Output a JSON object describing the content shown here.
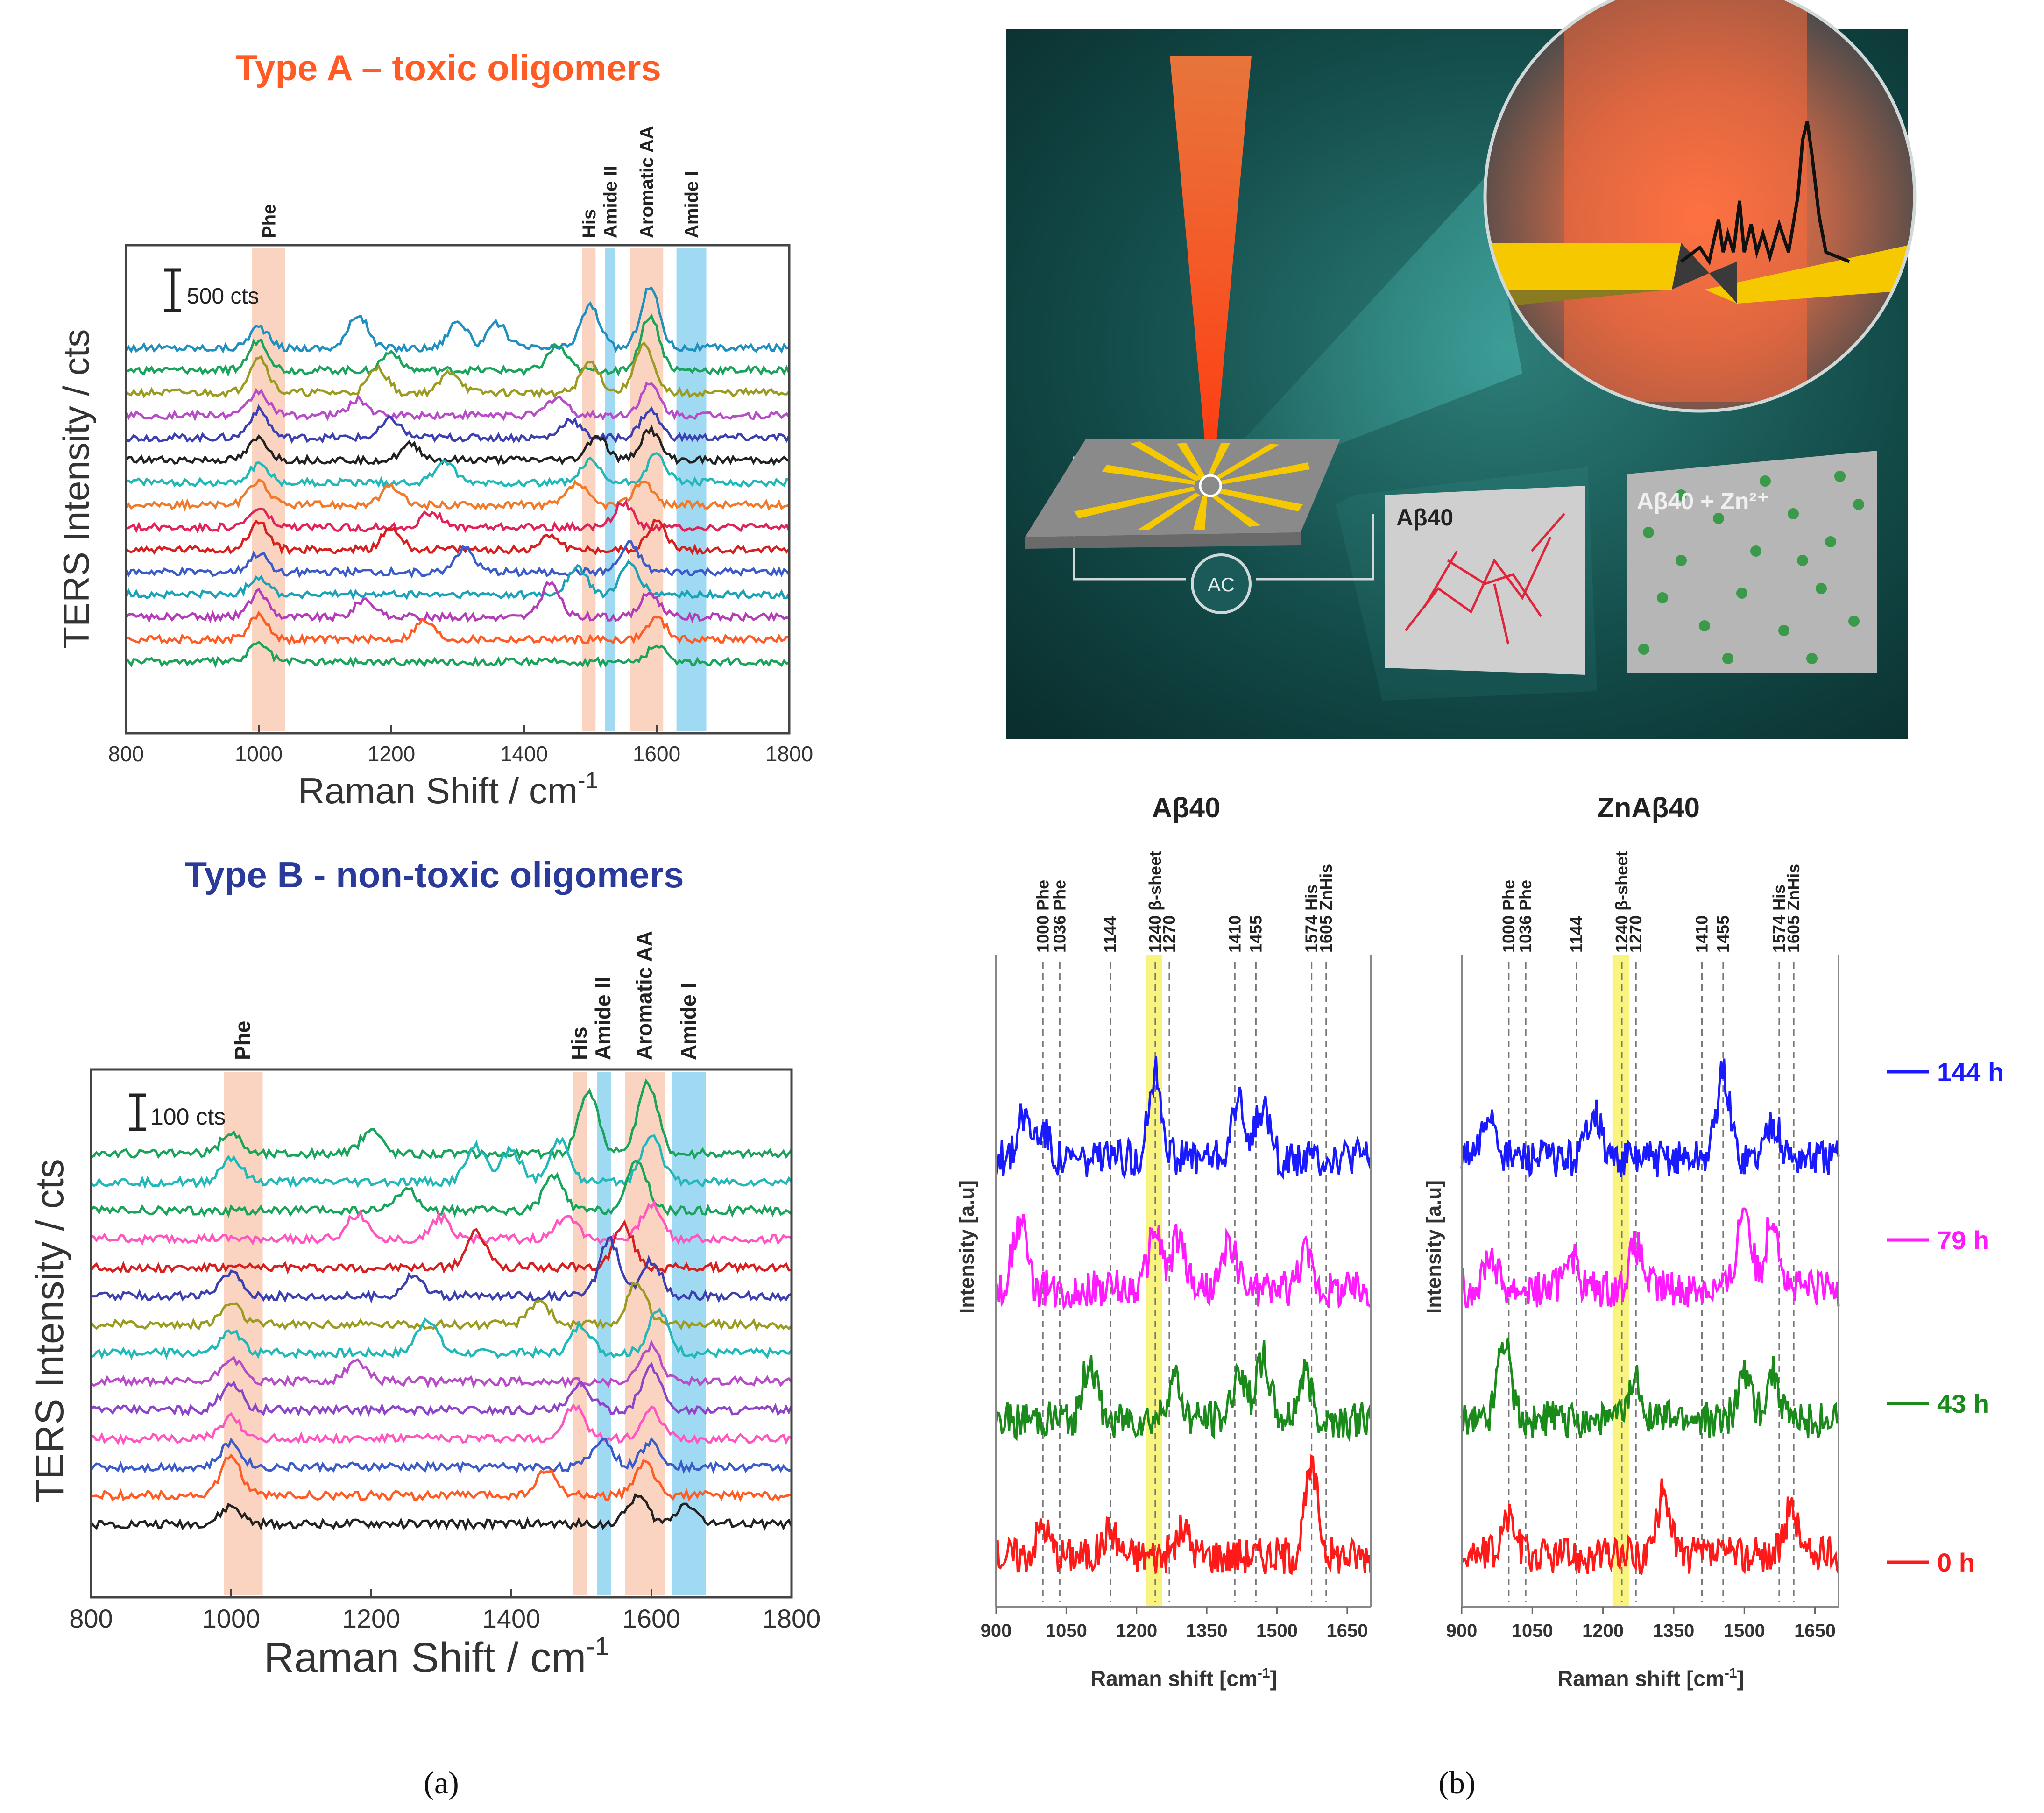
{
  "panel_a_label": "(a)",
  "panel_b_label": "(b)",
  "illustration": {
    "label_abeta": "Aβ40",
    "label_abeta_zn": "Aβ40 + Zn²⁺",
    "label_ac": "AC",
    "colors": {
      "background": "#0f4c4a",
      "laser": "#ff6a2a",
      "gold": "#f5c800"
    }
  },
  "chart_data": [
    {
      "type": "line",
      "title": "Type A – toxic oligomers",
      "title_color": "#ff5b24",
      "xlabel": "Raman Shift / cm",
      "xlabel_sup": "-1",
      "ylabel": "TERS Intensity / cts",
      "xlim": [
        800,
        1800
      ],
      "xticks": [
        "800",
        "1000",
        "1200",
        "1400",
        "1600",
        "1800"
      ],
      "scalebar_label": "500 cts",
      "bands": [
        {
          "label": "Phe",
          "from": 990,
          "to": 1040,
          "color": "orange"
        },
        {
          "label": "His",
          "from": 1488,
          "to": 1508,
          "color": "orange"
        },
        {
          "label": "Amide II",
          "from": 1522,
          "to": 1538,
          "color": "blue"
        },
        {
          "label": "Aromatic AA",
          "from": 1560,
          "to": 1610,
          "color": "orange"
        },
        {
          "label": "Amide I",
          "from": 1630,
          "to": 1675,
          "color": "blue"
        }
      ],
      "series": [
        {
          "color": "#1f8fc0",
          "peaks": [
            [
              1000,
              0.35
            ],
            [
              1150,
              0.55
            ],
            [
              1300,
              0.45
            ],
            [
              1360,
              0.4
            ],
            [
              1500,
              0.7
            ],
            [
              1590,
              1.0
            ]
          ]
        },
        {
          "color": "#1aa35a",
          "peaks": [
            [
              1000,
              0.5
            ],
            [
              1200,
              0.3
            ],
            [
              1450,
              0.4
            ],
            [
              1590,
              0.9
            ]
          ]
        },
        {
          "color": "#9b9b22",
          "peaks": [
            [
              1000,
              0.6
            ],
            [
              1180,
              0.4
            ],
            [
              1290,
              0.35
            ],
            [
              1500,
              0.5
            ],
            [
              1580,
              0.8
            ]
          ]
        },
        {
          "color": "#b84cc8",
          "peaks": [
            [
              1000,
              0.4
            ],
            [
              1150,
              0.25
            ],
            [
              1450,
              0.3
            ],
            [
              1590,
              0.5
            ]
          ]
        },
        {
          "color": "#3b3fb0",
          "peaks": [
            [
              1000,
              0.45
            ],
            [
              1200,
              0.3
            ],
            [
              1470,
              0.3
            ],
            [
              1590,
              0.45
            ]
          ]
        },
        {
          "color": "#222222",
          "peaks": [
            [
              1000,
              0.35
            ],
            [
              1230,
              0.25
            ],
            [
              1510,
              0.4
            ],
            [
              1590,
              0.5
            ]
          ]
        },
        {
          "color": "#20b8b8",
          "peaks": [
            [
              1000,
              0.3
            ],
            [
              1280,
              0.35
            ],
            [
              1500,
              0.35
            ],
            [
              1600,
              0.45
            ]
          ]
        },
        {
          "color": "#f07a2a",
          "peaks": [
            [
              1000,
              0.4
            ],
            [
              1200,
              0.3
            ],
            [
              1480,
              0.35
            ],
            [
              1580,
              0.4
            ]
          ]
        },
        {
          "color": "#e0245a",
          "peaks": [
            [
              1000,
              0.3
            ],
            [
              1260,
              0.25
            ],
            [
              1550,
              0.4
            ]
          ]
        },
        {
          "color": "#d62020",
          "peaks": [
            [
              1000,
              0.45
            ],
            [
              1200,
              0.35
            ],
            [
              1440,
              0.25
            ],
            [
              1600,
              0.45
            ]
          ]
        },
        {
          "color": "#3b5bc8",
          "peaks": [
            [
              1000,
              0.3
            ],
            [
              1310,
              0.4
            ],
            [
              1560,
              0.45
            ]
          ]
        },
        {
          "color": "#1aa3b8",
          "peaks": [
            [
              1000,
              0.3
            ],
            [
              1480,
              0.45
            ],
            [
              1560,
              0.5
            ]
          ]
        },
        {
          "color": "#b43cb8",
          "peaks": [
            [
              1000,
              0.4
            ],
            [
              1160,
              0.3
            ],
            [
              1440,
              0.55
            ],
            [
              1590,
              0.4
            ]
          ]
        },
        {
          "color": "#ff5b24",
          "peaks": [
            [
              1000,
              0.4
            ],
            [
              1250,
              0.3
            ],
            [
              1600,
              0.35
            ]
          ]
        },
        {
          "color": "#1aa35a",
          "peaks": [
            [
              1000,
              0.3
            ],
            [
              1600,
              0.25
            ]
          ]
        }
      ]
    },
    {
      "type": "line",
      "title": "Type B - non-toxic oligomers",
      "title_color": "#2a3a9a",
      "xlabel": "Raman Shift / cm",
      "xlabel_sup": "-1",
      "ylabel": "TERS Intensity / cts",
      "xlim": [
        800,
        1800
      ],
      "xticks": [
        "800",
        "1000",
        "1200",
        "1400",
        "1600",
        "1800"
      ],
      "scalebar_label": "100 cts",
      "bands": [
        {
          "label": "Phe",
          "from": 990,
          "to": 1045,
          "color": "orange"
        },
        {
          "label": "His",
          "from": 1488,
          "to": 1508,
          "color": "orange"
        },
        {
          "label": "Amide II",
          "from": 1522,
          "to": 1542,
          "color": "blue"
        },
        {
          "label": "Aromatic AA",
          "from": 1562,
          "to": 1620,
          "color": "orange"
        },
        {
          "label": "Amide I",
          "from": 1630,
          "to": 1678,
          "color": "blue"
        }
      ],
      "series": [
        {
          "color": "#1aa35a",
          "peaks": [
            [
              1000,
              0.3
            ],
            [
              1200,
              0.35
            ],
            [
              1510,
              0.9
            ],
            [
              1595,
              1.0
            ]
          ]
        },
        {
          "color": "#20b8b8",
          "peaks": [
            [
              1000,
              0.35
            ],
            [
              1350,
              0.5
            ],
            [
              1400,
              0.45
            ],
            [
              1470,
              0.6
            ],
            [
              1600,
              0.7
            ]
          ]
        },
        {
          "color": "#1aa35a",
          "peaks": [
            [
              1250,
              0.3
            ],
            [
              1460,
              0.5
            ],
            [
              1580,
              0.7
            ]
          ]
        },
        {
          "color": "#ff55c0",
          "peaks": [
            [
              1180,
              0.35
            ],
            [
              1300,
              0.3
            ],
            [
              1480,
              0.35
            ],
            [
              1600,
              0.5
            ]
          ]
        },
        {
          "color": "#d62020",
          "peaks": [
            [
              1350,
              0.5
            ],
            [
              1560,
              0.6
            ]
          ]
        },
        {
          "color": "#3b3fb0",
          "peaks": [
            [
              1000,
              0.35
            ],
            [
              1260,
              0.3
            ],
            [
              1540,
              0.8
            ],
            [
              1600,
              0.5
            ]
          ]
        },
        {
          "color": "#9b9b22",
          "peaks": [
            [
              1000,
              0.3
            ],
            [
              1440,
              0.35
            ],
            [
              1580,
              0.6
            ]
          ]
        },
        {
          "color": "#20b8b8",
          "peaks": [
            [
              1000,
              0.3
            ],
            [
              1280,
              0.5
            ],
            [
              1500,
              0.4
            ],
            [
              1610,
              0.6
            ]
          ]
        },
        {
          "color": "#b84cc8",
          "peaks": [
            [
              1000,
              0.35
            ],
            [
              1180,
              0.3
            ],
            [
              1600,
              0.5
            ]
          ]
        },
        {
          "color": "#8e44c8",
          "peaks": [
            [
              1000,
              0.4
            ],
            [
              1500,
              0.35
            ],
            [
              1600,
              0.6
            ]
          ]
        },
        {
          "color": "#ff55c0",
          "peaks": [
            [
              1000,
              0.3
            ],
            [
              1490,
              0.45
            ],
            [
              1600,
              0.4
            ]
          ]
        },
        {
          "color": "#3b5bc8",
          "peaks": [
            [
              1000,
              0.35
            ],
            [
              1530,
              0.4
            ],
            [
              1600,
              0.35
            ]
          ]
        },
        {
          "color": "#ff5b24",
          "peaks": [
            [
              1000,
              0.55
            ],
            [
              1450,
              0.35
            ],
            [
              1590,
              0.45
            ]
          ]
        },
        {
          "color": "#222222",
          "peaks": [
            [
              1000,
              0.25
            ],
            [
              1580,
              0.4
            ],
            [
              1650,
              0.3
            ]
          ]
        }
      ]
    },
    {
      "type": "line",
      "title": "Aβ40",
      "xlabel": "Raman shift [cm",
      "xlabel_sup": "-1",
      "xlabel_tail": "]",
      "ylabel": "Intensity [a.u]",
      "xlim": [
        900,
        1700
      ],
      "xticks": [
        "900",
        "1050",
        "1200",
        "1350",
        "1500",
        "1650"
      ],
      "tick_values": [
        900,
        1050,
        1200,
        1350,
        1500,
        1650
      ],
      "highlight": {
        "from": 1220,
        "to": 1255
      },
      "markers": [
        {
          "x": 1000,
          "label": "1000 Phe"
        },
        {
          "x": 1036,
          "label": "1036 Phe"
        },
        {
          "x": 1144,
          "label": "1144"
        },
        {
          "x": 1240,
          "label": "1240 β-sheet"
        },
        {
          "x": 1270,
          "label": "1270"
        },
        {
          "x": 1410,
          "label": "1410"
        },
        {
          "x": 1455,
          "label": "1455"
        },
        {
          "x": 1574,
          "label": "1574 His"
        },
        {
          "x": 1605,
          "label": "1605 ZnHis"
        }
      ],
      "series": [
        {
          "name": "144 h",
          "color": "#1a1aff",
          "peaks": [
            [
              960,
              0.5
            ],
            [
              1000,
              0.35
            ],
            [
              1240,
              1.0
            ],
            [
              1420,
              0.7
            ],
            [
              1470,
              0.6
            ]
          ]
        },
        {
          "name": "79 h",
          "color": "#ff1aff",
          "peaks": [
            [
              950,
              0.8
            ],
            [
              1240,
              0.7
            ],
            [
              1290,
              0.6
            ],
            [
              1400,
              0.55
            ],
            [
              1560,
              0.45
            ]
          ]
        },
        {
          "name": "43 h",
          "color": "#1a8a1a",
          "peaks": [
            [
              1100,
              0.7
            ],
            [
              1280,
              0.5
            ],
            [
              1420,
              0.6
            ],
            [
              1470,
              0.75
            ],
            [
              1560,
              0.55
            ]
          ]
        },
        {
          "name": "0 h",
          "color": "#ff1a1a",
          "peaks": [
            [
              1000,
              0.35
            ],
            [
              1144,
              0.3
            ],
            [
              1300,
              0.3
            ],
            [
              1574,
              1.0
            ]
          ]
        }
      ]
    },
    {
      "type": "line",
      "title": "ZnAβ40",
      "xlabel": "Raman shift [cm",
      "xlabel_sup": "-1",
      "xlabel_tail": "]",
      "ylabel": "Intensity [a.u]",
      "xlim": [
        900,
        1700
      ],
      "xticks": [
        "900",
        "1050",
        "1200",
        "1350",
        "1500",
        "1650"
      ],
      "tick_values": [
        900,
        1050,
        1200,
        1350,
        1500,
        1650
      ],
      "highlight": {
        "from": 1220,
        "to": 1255
      },
      "markers": [
        {
          "x": 1000,
          "label": "1000 Phe"
        },
        {
          "x": 1036,
          "label": "1036 Phe"
        },
        {
          "x": 1144,
          "label": "1144"
        },
        {
          "x": 1240,
          "label": "1240 β-sheet"
        },
        {
          "x": 1270,
          "label": "1270"
        },
        {
          "x": 1410,
          "label": "1410"
        },
        {
          "x": 1455,
          "label": "1455"
        },
        {
          "x": 1574,
          "label": "1574 His"
        },
        {
          "x": 1605,
          "label": "1605 ZnHis"
        }
      ],
      "series": [
        {
          "name": "144 h",
          "color": "#1a1aff",
          "peaks": [
            [
              960,
              0.55
            ],
            [
              1180,
              0.6
            ],
            [
              1455,
              1.0
            ],
            [
              1560,
              0.45
            ]
          ]
        },
        {
          "name": "79 h",
          "color": "#ff1aff",
          "peaks": [
            [
              960,
              0.4
            ],
            [
              1130,
              0.45
            ],
            [
              1270,
              0.5
            ],
            [
              1500,
              1.0
            ],
            [
              1560,
              0.9
            ]
          ]
        },
        {
          "name": "43 h",
          "color": "#1a8a1a",
          "peaks": [
            [
              990,
              1.0
            ],
            [
              1270,
              0.45
            ],
            [
              1500,
              0.6
            ],
            [
              1560,
              0.55
            ]
          ]
        },
        {
          "name": "0 h",
          "color": "#ff1a1a",
          "peaks": [
            [
              1000,
              0.45
            ],
            [
              1330,
              0.75
            ],
            [
              1600,
              0.55
            ]
          ]
        }
      ]
    }
  ]
}
